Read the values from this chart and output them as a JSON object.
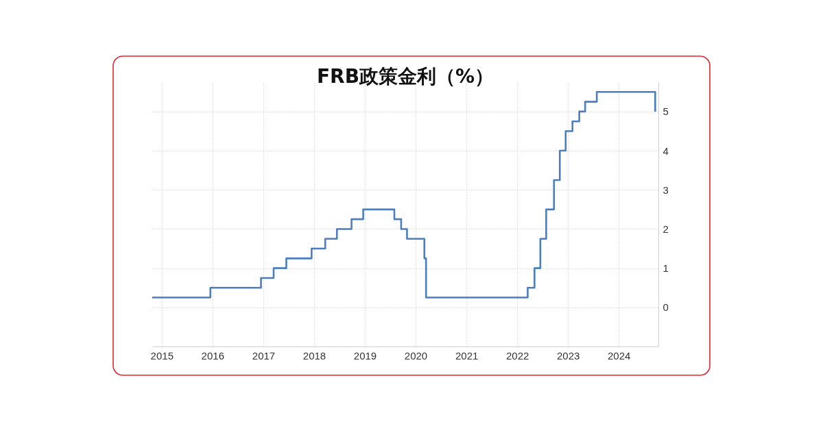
{
  "chart_data": {
    "type": "step",
    "title": "FRB政策金利（%）",
    "x": [
      "2014-10-25",
      "2015-12-17",
      "2016-12-15",
      "2017-03-16",
      "2017-06-15",
      "2017-12-14",
      "2018-03-22",
      "2018-06-14",
      "2018-09-27",
      "2018-12-20",
      "2019-08-01",
      "2019-09-19",
      "2019-10-31",
      "2020-03-04",
      "2020-03-16",
      "2022-03-17",
      "2022-05-05",
      "2022-06-16",
      "2022-07-28",
      "2022-09-22",
      "2022-11-03",
      "2022-12-15",
      "2023-02-02",
      "2023-03-23",
      "2023-05-04",
      "2023-07-27",
      "2024-09-19"
    ],
    "values": [
      0.25,
      0.5,
      0.75,
      1,
      1.25,
      1.5,
      1.75,
      2,
      2.25,
      2.5,
      2.25,
      2,
      1.75,
      1.25,
      0.25,
      0.5,
      1,
      1.75,
      2.5,
      3.25,
      4,
      4.5,
      4.75,
      5,
      5.25,
      5.5,
      5
    ],
    "color": "#4a7ebf",
    "xlim": [
      "2014-10-25",
      "2024-10-12"
    ],
    "xticks": [
      "2015",
      "2016",
      "2017",
      "2018",
      "2019",
      "2020",
      "2021",
      "2022",
      "2023",
      "2024"
    ],
    "ylim": [
      -1,
      5.75
    ],
    "yticks": [
      0,
      1,
      2,
      3,
      4,
      5
    ],
    "grid": true,
    "line_style": "solid"
  }
}
